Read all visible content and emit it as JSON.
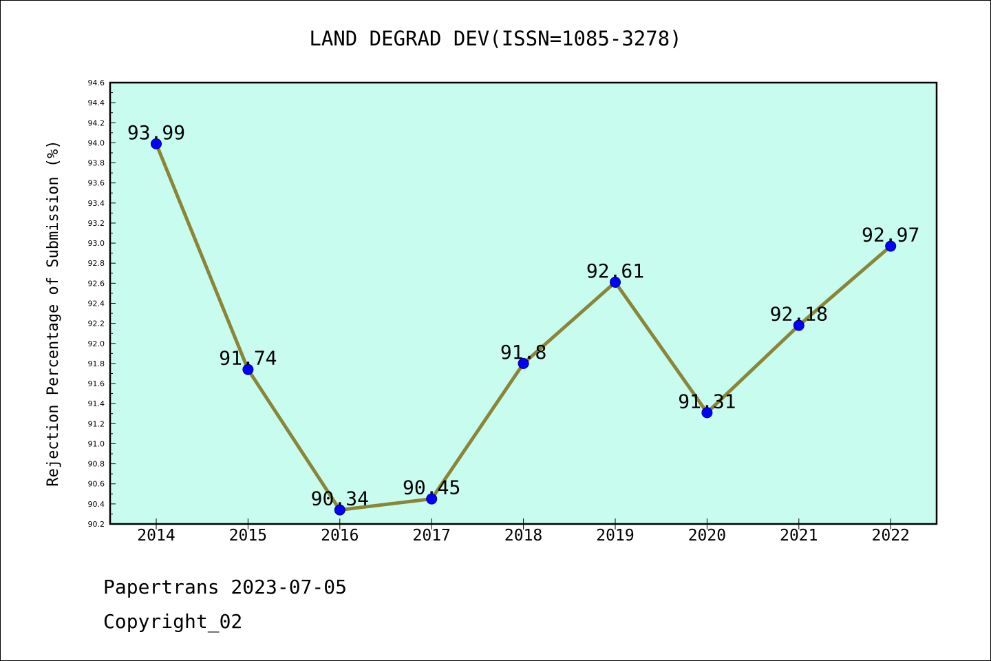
{
  "chart_data": {
    "type": "line",
    "title": "LAND DEGRAD DEV(ISSN=1085-3278)",
    "xlabel": "",
    "ylabel": "Rejection Percentage of Submission (%)",
    "categories": [
      "2014",
      "2015",
      "2016",
      "2017",
      "2018",
      "2019",
      "2020",
      "2021",
      "2022"
    ],
    "values": [
      93.99,
      91.74,
      90.34,
      90.45,
      91.8,
      92.61,
      91.31,
      92.18,
      92.97
    ],
    "data_labels": [
      "93.99",
      "91.74",
      "90.34",
      "90.45",
      "91.8",
      "92.61",
      "91.31",
      "92.18",
      "92.97"
    ],
    "ylim": [
      90.2,
      94.6
    ],
    "yticks": [
      "90.2",
      "90.4",
      "90.6",
      "90.8",
      "91.0",
      "91.2",
      "91.4",
      "91.6",
      "91.8",
      "92.0",
      "92.2",
      "92.4",
      "92.6",
      "92.8",
      "93.0",
      "93.2",
      "93.4",
      "93.6",
      "93.8",
      "94.0",
      "94.2",
      "94.4",
      "94.6"
    ],
    "grid": false,
    "colors": {
      "plot_background": "#c8fcee",
      "line": "#8b8538",
      "marker": "#0000ff"
    }
  },
  "footer": {
    "line1": "Papertrans 2023-07-05",
    "line2": "Copyright_02"
  }
}
